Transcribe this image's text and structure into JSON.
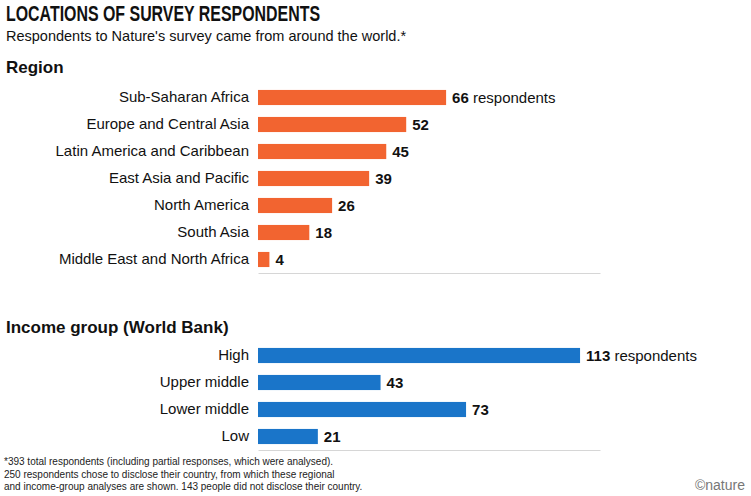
{
  "title": "LOCATIONS OF SURVEY RESPONDENTS",
  "subtitle": "Respondents to Nature's survey came from around the world.*",
  "notes": [
    "*393 total respondents (including partial responses, which were analysed).",
    "250 respondents chose to disclose their country, from which these regional",
    "and income-group analyses are shown. 143 people did not disclose their country."
  ],
  "credit": "©nature",
  "chart_data": [
    {
      "type": "bar",
      "title": "Region",
      "orientation": "horizontal",
      "categories": [
        "Sub-Saharan Africa",
        "Europe and Central Asia",
        "Latin America and Caribbean",
        "East Asia and Pacific",
        "North America",
        "South Asia",
        "Middle East and North Africa"
      ],
      "values": [
        66,
        52,
        45,
        39,
        26,
        18,
        4
      ],
      "value_labels": [
        "66 respondents",
        "52",
        "45",
        "39",
        "26",
        "18",
        "4"
      ],
      "color": "#f26430",
      "xlim": [
        0,
        120
      ],
      "xticks": [],
      "grid": false,
      "data_labels": true,
      "tick_labels": "y"
    },
    {
      "type": "bar",
      "title": "Income group (World Bank)",
      "orientation": "horizontal",
      "categories": [
        "High",
        "Upper middle",
        "Lower middle",
        "Low"
      ],
      "values": [
        113,
        43,
        73,
        21
      ],
      "value_labels": [
        "113 respondents",
        "43",
        "73",
        "21"
      ],
      "color": "#1a75c9",
      "xlim": [
        0,
        120
      ],
      "xticks": [],
      "grid": false,
      "data_labels": true,
      "tick_labels": "y"
    }
  ]
}
